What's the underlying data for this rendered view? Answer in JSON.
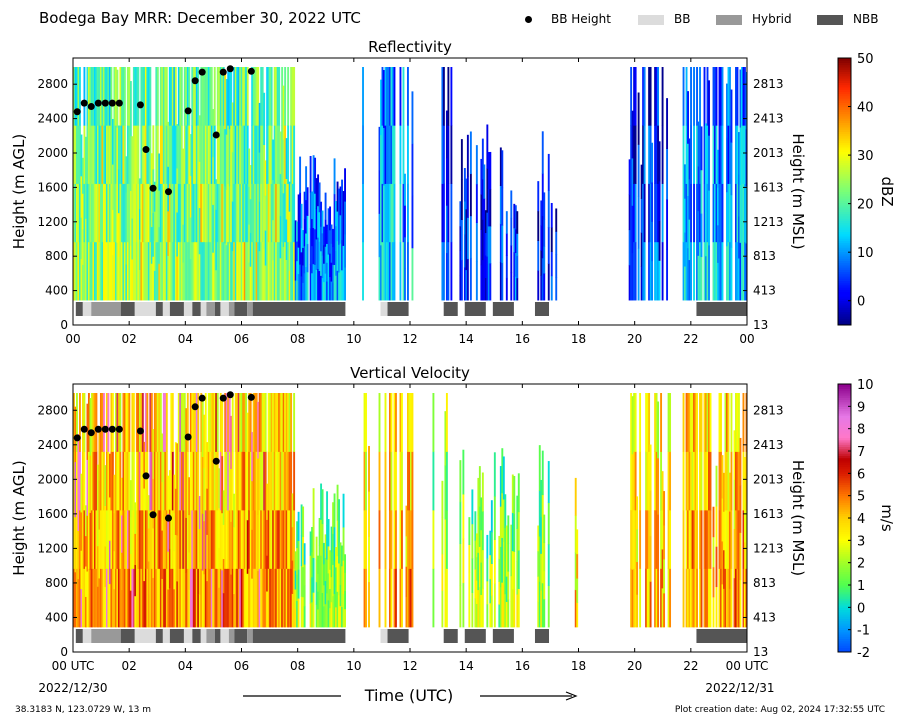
{
  "title": "Bodega Bay MRR:  December 30, 2022 UTC",
  "legend": {
    "items": [
      {
        "label": "BB Height",
        "color": "#000000",
        "kind": "dot"
      },
      {
        "label": "BB",
        "color": "#dcdcdc",
        "kind": "box"
      },
      {
        "label": "Hybrid",
        "color": "#999999",
        "kind": "box"
      },
      {
        "label": "NBB",
        "color": "#555555",
        "kind": "box"
      }
    ]
  },
  "footer": {
    "location": "38.3183 N, 123.0729 W, 13 m",
    "created": "Plot creation date: Aug 02, 2024 17:32:55 UTC",
    "start_date": "2022/12/30",
    "end_date": "2022/12/31",
    "xlabel": "Time (UTC)"
  },
  "chart_data": [
    {
      "type": "heatmap",
      "title": "Reflectivity",
      "xlabel": "Time (UTC)",
      "ylabel": "Height (m AGL)",
      "ylabel_right": "Height (m MSL)",
      "xlim": [
        0,
        24
      ],
      "ylim": [
        0,
        3000
      ],
      "x_ticks": [
        "00",
        "02",
        "04",
        "06",
        "08",
        "10",
        "12",
        "14",
        "16",
        "18",
        "20",
        "22",
        "00"
      ],
      "y_ticks": [
        0,
        400,
        800,
        1200,
        1600,
        2000,
        2400,
        2800
      ],
      "y_ticks_right": [
        "13",
        "413",
        "813",
        "1213",
        "1613",
        "2013",
        "2413",
        "2813"
      ],
      "colorbar": {
        "label": "dBZ",
        "min": -5,
        "max": 50,
        "ticks": [
          0,
          10,
          20,
          30,
          40,
          50
        ],
        "colormap": "jet"
      },
      "grid": false
    },
    {
      "type": "heatmap",
      "title": "Vertical Velocity",
      "xlabel": "Time (UTC)",
      "ylabel": "Height (m AGL)",
      "ylabel_right": "Height (m MSL)",
      "xlim": [
        0,
        24
      ],
      "ylim": [
        0,
        3000
      ],
      "x_ticks": [
        "00 UTC",
        "02",
        "04",
        "06",
        "08",
        "10",
        "12",
        "14",
        "16",
        "18",
        "20",
        "22",
        "00 UTC"
      ],
      "y_ticks": [
        0,
        400,
        800,
        1200,
        1600,
        2000,
        2400,
        2800
      ],
      "y_ticks_right": [
        "13",
        "413",
        "813",
        "1213",
        "1613",
        "2013",
        "2413",
        "2813"
      ],
      "colorbar": {
        "label": "m/s",
        "min": -2,
        "max": 10,
        "ticks": [
          -2,
          -1,
          0,
          1,
          2,
          3,
          4,
          5,
          6,
          7,
          8,
          9,
          10
        ],
        "colormap": "velocity"
      },
      "grid": false
    }
  ],
  "bb_height_points": [
    {
      "x": 0.15,
      "y": 2480
    },
    {
      "x": 0.4,
      "y": 2580
    },
    {
      "x": 0.65,
      "y": 2540
    },
    {
      "x": 0.9,
      "y": 2580
    },
    {
      "x": 1.15,
      "y": 2580
    },
    {
      "x": 1.4,
      "y": 2580
    },
    {
      "x": 1.65,
      "y": 2580
    },
    {
      "x": 2.4,
      "y": 2560
    },
    {
      "x": 2.6,
      "y": 2040
    },
    {
      "x": 2.85,
      "y": 1590
    },
    {
      "x": 3.4,
      "y": 1550
    },
    {
      "x": 4.1,
      "y": 2490
    },
    {
      "x": 4.35,
      "y": 2840
    },
    {
      "x": 4.6,
      "y": 2940
    },
    {
      "x": 5.1,
      "y": 2210
    },
    {
      "x": 5.35,
      "y": 2940
    },
    {
      "x": 5.6,
      "y": 2980
    },
    {
      "x": 6.35,
      "y": 2950
    }
  ],
  "bb_class_segments": [
    {
      "start": 0.1,
      "end": 0.35,
      "class": "NBB"
    },
    {
      "start": 0.35,
      "end": 0.65,
      "class": "BB"
    },
    {
      "start": 0.65,
      "end": 1.7,
      "class": "Hybrid"
    },
    {
      "start": 1.7,
      "end": 2.2,
      "class": "NBB"
    },
    {
      "start": 2.2,
      "end": 2.95,
      "class": "BB"
    },
    {
      "start": 2.95,
      "end": 3.2,
      "class": "NBB"
    },
    {
      "start": 3.2,
      "end": 3.45,
      "class": "BB"
    },
    {
      "start": 3.45,
      "end": 3.95,
      "class": "NBB"
    },
    {
      "start": 3.95,
      "end": 4.25,
      "class": "BB"
    },
    {
      "start": 4.25,
      "end": 4.55,
      "class": "NBB"
    },
    {
      "start": 4.55,
      "end": 4.75,
      "class": "BB"
    },
    {
      "start": 4.75,
      "end": 5.05,
      "class": "Hybrid"
    },
    {
      "start": 5.05,
      "end": 5.25,
      "class": "NBB"
    },
    {
      "start": 5.25,
      "end": 5.55,
      "class": "BB"
    },
    {
      "start": 5.55,
      "end": 5.75,
      "class": "Hybrid"
    },
    {
      "start": 5.75,
      "end": 6.2,
      "class": "NBB"
    },
    {
      "start": 6.2,
      "end": 6.4,
      "class": "Hybrid"
    },
    {
      "start": 6.4,
      "end": 9.7,
      "class": "NBB"
    },
    {
      "start": 10.95,
      "end": 11.2,
      "class": "BB"
    },
    {
      "start": 11.2,
      "end": 11.95,
      "class": "NBB"
    },
    {
      "start": 13.2,
      "end": 13.7,
      "class": "NBB"
    },
    {
      "start": 13.95,
      "end": 14.7,
      "class": "NBB"
    },
    {
      "start": 14.95,
      "end": 15.7,
      "class": "NBB"
    },
    {
      "start": 16.45,
      "end": 16.95,
      "class": "NBB"
    },
    {
      "start": 22.2,
      "end": 24.0,
      "class": "NBB"
    }
  ],
  "echo_periods": [
    {
      "start": 0.0,
      "end": 7.9,
      "top": 3000,
      "density": 1.0,
      "zmean": 24,
      "vmean": 4.6
    },
    {
      "start": 7.9,
      "end": 9.7,
      "top": 2000,
      "density": 0.9,
      "zmean": 10,
      "vmean": 2.2
    },
    {
      "start": 10.3,
      "end": 10.55,
      "top": 3000,
      "density": 0.35,
      "zmean": 10,
      "vmean": 4.0
    },
    {
      "start": 10.9,
      "end": 12.2,
      "top": 3000,
      "density": 0.55,
      "zmean": 13,
      "vmean": 4.5
    },
    {
      "start": 12.7,
      "end": 13.5,
      "top": 3000,
      "density": 0.4,
      "zmean": 6,
      "vmean": 2.6
    },
    {
      "start": 13.7,
      "end": 15.9,
      "top": 2400,
      "density": 0.55,
      "zmean": 5,
      "vmean": 2.2
    },
    {
      "start": 16.5,
      "end": 17.3,
      "top": 2400,
      "density": 0.35,
      "zmean": 3,
      "vmean": 2.2
    },
    {
      "start": 17.7,
      "end": 18.0,
      "top": 2200,
      "density": 0.3,
      "zmean": 6,
      "vmean": 3.8
    },
    {
      "start": 19.8,
      "end": 21.3,
      "top": 3000,
      "density": 0.6,
      "zmean": 6,
      "vmean": 4.2
    },
    {
      "start": 21.7,
      "end": 24.0,
      "top": 3000,
      "density": 0.85,
      "zmean": 12,
      "vmean": 4.6
    }
  ]
}
